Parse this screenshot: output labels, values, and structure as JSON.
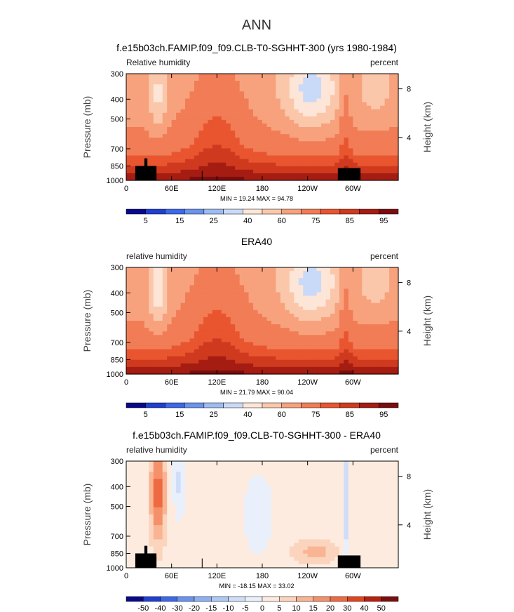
{
  "figure": {
    "main_title": "ANN"
  },
  "colors": {
    "abs_scale": [
      "#08088a",
      "#1f3fcf",
      "#3c69e8",
      "#6a93ee",
      "#9dbcf2",
      "#c9daf8",
      "#fde6d8",
      "#fbc7aa",
      "#f7a27d",
      "#f17c56",
      "#e8552f",
      "#cf3a1f",
      "#a51c12",
      "#7a0d0d"
    ],
    "diff_scale": [
      "#08088a",
      "#1f3fcf",
      "#3c69e8",
      "#6a93ee",
      "#8fb0f0",
      "#aec8f4",
      "#cfddf8",
      "#e9f0fc",
      "#fdebe0",
      "#fbd4bd",
      "#f9b593",
      "#f5916a",
      "#ee6a43",
      "#e0451f",
      "#b8200f",
      "#7a0d0d"
    ],
    "land": "#000000"
  },
  "chart_data": [
    {
      "type": "heatmap",
      "title": "f.e15b03ch.FAMIP.f09_f09.CLB-T0-SGHHT-300 (yrs 1980-1984)",
      "left_label": "Relative humidity",
      "right_label": "percent",
      "ylabel": "Pressure (mb)",
      "y2label": "Height (km)",
      "x_ticks": [
        "0",
        "60E",
        "120E",
        "180",
        "120W",
        "60W"
      ],
      "y_ticks": [
        "300",
        "400",
        "500",
        "700",
        "850",
        "1000"
      ],
      "y2_ticks": [
        "8",
        "4"
      ],
      "min_max": "MIN =  19.24   MAX =  94.78",
      "colorbar_labels": [
        "5",
        "15",
        "25",
        "40",
        "60",
        "75",
        "85",
        "95"
      ],
      "min": 19.24,
      "max": 94.78
    },
    {
      "type": "heatmap",
      "title": "ERA40",
      "left_label": "relative humidity",
      "right_label": "percent",
      "ylabel": "Pressure (mb)",
      "y2label": "Height (km)",
      "x_ticks": [
        "0",
        "60E",
        "120E",
        "180",
        "120W",
        "60W"
      ],
      "y_ticks": [
        "300",
        "400",
        "500",
        "700",
        "850",
        "1000"
      ],
      "y2_ticks": [
        "8",
        "4"
      ],
      "min_max": "MIN =  21.79   MAX =  90.04",
      "colorbar_labels": [
        "5",
        "15",
        "25",
        "40",
        "60",
        "75",
        "85",
        "95"
      ],
      "min": 21.79,
      "max": 90.04
    },
    {
      "type": "heatmap",
      "title": "f.e15b03ch.FAMIP.f09_f09.CLB-T0-SGHHT-300 - ERA40",
      "left_label": "relative humidity",
      "right_label": "percent",
      "ylabel": "Pressure (mb)",
      "y2label": "Height (km)",
      "x_ticks": [
        "0",
        "60E",
        "120E",
        "180",
        "120W",
        "60W"
      ],
      "y_ticks": [
        "300",
        "400",
        "500",
        "700",
        "850",
        "1000"
      ],
      "y2_ticks": [
        "8",
        "4"
      ],
      "min_max": "MIN = -18.15   MAX =  33.02",
      "colorbar_labels": [
        "-50",
        "-40",
        "-30",
        "-20",
        "-15",
        "-10",
        "-5",
        "0",
        "5",
        "10",
        "15",
        "20",
        "30",
        "40",
        "50"
      ],
      "min": -18.15,
      "max": 33.02
    }
  ]
}
